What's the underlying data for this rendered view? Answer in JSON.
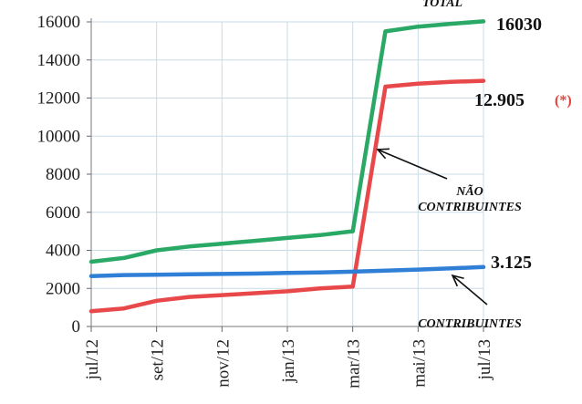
{
  "chart_data": {
    "type": "line",
    "x": [
      "jul/12",
      "ago/12",
      "set/12",
      "out/12",
      "nov/12",
      "dez/12",
      "jan/13",
      "fev/13",
      "mar/13",
      "abr/13",
      "mai/13",
      "jun/13",
      "jul/13"
    ],
    "x_tick_labels": [
      "jul/12",
      "set/12",
      "nov/12",
      "jan/13",
      "mar/13",
      "mai/13",
      "jul/13"
    ],
    "y_ticks": [
      0,
      2000,
      4000,
      6000,
      8000,
      10000,
      12000,
      14000,
      16000
    ],
    "ylim": [
      0,
      16000
    ],
    "grid": true,
    "series": [
      {
        "name": "TOTAL",
        "color": "#2aa866",
        "values": [
          3400,
          3600,
          4000,
          4200,
          4350,
          4500,
          4650,
          4800,
          5000,
          15500,
          15750,
          15900,
          16030
        ],
        "end_label": "16030"
      },
      {
        "name": "NÃO CONTRIBUINTES",
        "color": "#e8484a",
        "values": [
          800,
          950,
          1350,
          1550,
          1650,
          1750,
          1850,
          2000,
          2100,
          12600,
          12750,
          12850,
          12905
        ],
        "end_label": "12.905",
        "note": "(*)"
      },
      {
        "name": "CONTRIBUINTES",
        "color": "#2f7fd6",
        "values": [
          2650,
          2700,
          2720,
          2740,
          2760,
          2780,
          2810,
          2840,
          2880,
          2930,
          2990,
          3050,
          3125
        ],
        "end_label": "3.125"
      }
    ],
    "annotations": [
      {
        "lines": [
          "TOTAL"
        ],
        "target": "TOTAL"
      },
      {
        "lines": [
          "NÃO",
          "CONTRIBUINTES"
        ],
        "target": "NÃO CONTRIBUINTES"
      },
      {
        "lines": [
          "CONTRIBUINTES"
        ],
        "target": "CONTRIBUINTES"
      }
    ]
  }
}
